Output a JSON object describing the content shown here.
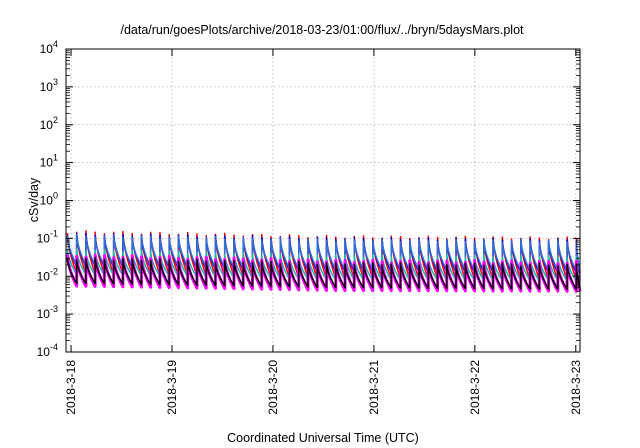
{
  "chart_data": {
    "type": "line",
    "title": "/data/run/goesPlots/archive/2018-03-23/01:00/flux/../bryn/5daysMars.plot",
    "xlabel": "Coordinated Universal Time (UTC)",
    "ylabel": "cSv/day",
    "yscale": "log",
    "ylim": [
      0.0001,
      10000
    ],
    "y_ticks": [
      {
        "base": "10",
        "exp": "-4"
      },
      {
        "base": "10",
        "exp": "-3"
      },
      {
        "base": "10",
        "exp": "-2"
      },
      {
        "base": "10",
        "exp": "-1"
      },
      {
        "base": "10",
        "exp": "0"
      },
      {
        "base": "10",
        "exp": "1"
      },
      {
        "base": "10",
        "exp": "2"
      },
      {
        "base": "10",
        "exp": "3"
      },
      {
        "base": "10",
        "exp": "4"
      }
    ],
    "x_ticks": [
      "2018-3-18",
      "2018-3-19",
      "2018-3-20",
      "2018-3-21",
      "2018-3-22",
      "2018-3-23"
    ],
    "xlim": [
      "2018-3-17 22:48",
      "2018-3-23 01:00"
    ],
    "grid": true,
    "legend": "none",
    "sawtooth_period_hours": 2.2,
    "series": [
      {
        "color": "#ff0000",
        "peak_values": [
          0.15,
          0.11,
          0.1
        ],
        "trough_values": [
          0.012,
          0.009,
          0.008
        ]
      },
      {
        "color": "#0000cc",
        "peak_values": [
          0.13,
          0.1,
          0.09
        ],
        "trough_values": [
          0.018,
          0.013,
          0.012
        ]
      },
      {
        "color": "#2f6fd8",
        "peak_values": [
          0.12,
          0.09,
          0.085
        ],
        "trough_values": [
          0.02,
          0.015,
          0.014
        ]
      },
      {
        "color": "#1fb8b0",
        "peak_values": [
          0.05,
          0.035,
          0.033
        ],
        "trough_values": [
          0.011,
          0.008,
          0.0075
        ]
      },
      {
        "color": "#ff00ff",
        "peak_values": [
          0.035,
          0.025,
          0.023
        ],
        "trough_values": [
          0.0055,
          0.0042,
          0.004
        ]
      },
      {
        "color": "#000000",
        "peak_values": [
          0.03,
          0.022,
          0.02
        ],
        "trough_values": [
          0.0065,
          0.005,
          0.0045
        ]
      }
    ]
  }
}
